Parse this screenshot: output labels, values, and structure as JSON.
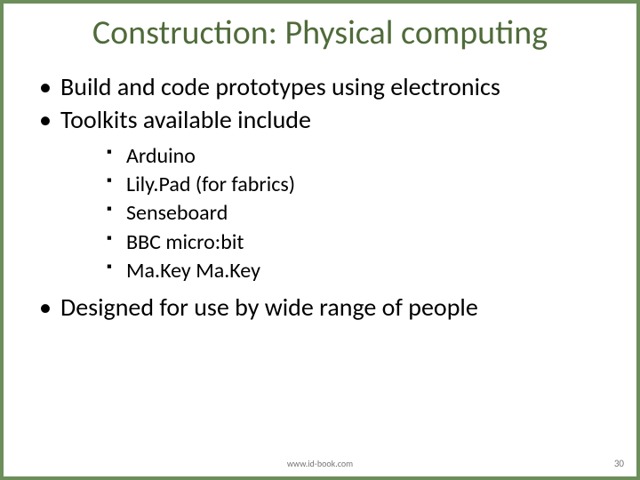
{
  "title": {
    "text": "Construction: Physical computing",
    "color": "#4f6b3a",
    "fontsize": 38
  },
  "body": {
    "color": "#000000",
    "fontsize_l1": 28,
    "fontsize_l2": 24,
    "bullets": [
      {
        "text": "Build and code prototypes using electronics"
      },
      {
        "text": "Toolkits available include",
        "sub": [
          "Arduino",
          "Lily.Pad (for fabrics)",
          "Senseboard",
          "BBC micro:bit",
          "Ma.Key Ma.Key"
        ]
      },
      {
        "text": "Designed for use by wide range of people"
      }
    ]
  },
  "footer": {
    "url": "www.id-book.com",
    "url_color": "#777777",
    "url_fontsize": 10,
    "page": "30",
    "page_color": "#777777",
    "page_fontsize": 11
  },
  "border_color": "#6b8e5a"
}
